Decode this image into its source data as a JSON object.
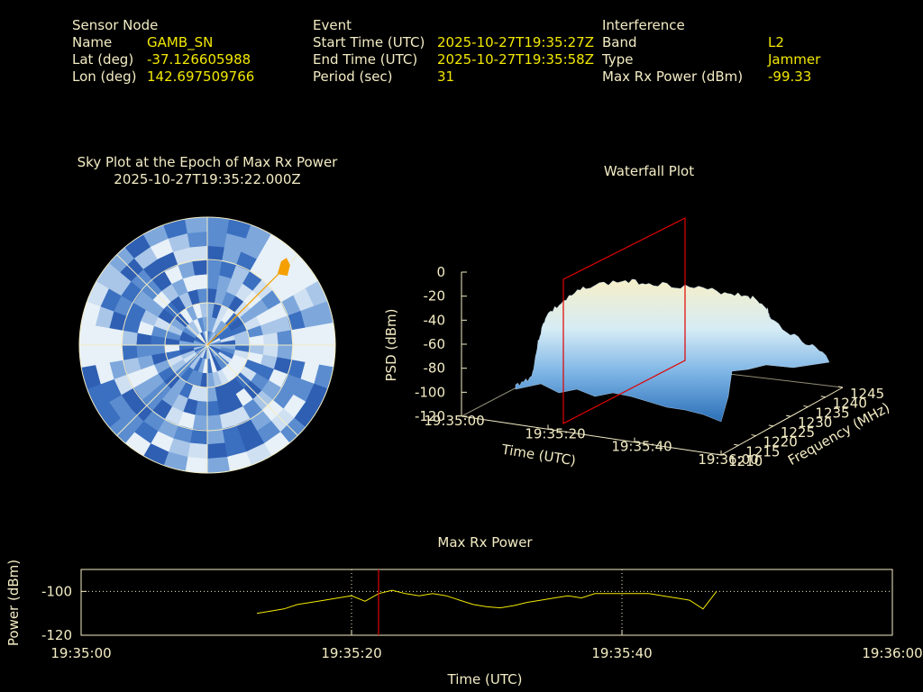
{
  "sensor": {
    "header": "Sensor Node",
    "name_label": "Name",
    "name": "GAMB_SN",
    "lat_label": "Lat (deg)",
    "lat": "-37.126605988",
    "lon_label": "Lon (deg)",
    "lon": "142.697509766"
  },
  "event": {
    "header": "Event",
    "start_label": "Start Time (UTC)",
    "start": "2025-10-27T19:35:27Z",
    "end_label": "End Time (UTC)",
    "end": "2025-10-27T19:35:58Z",
    "period_label": "Period (sec)",
    "period": "31"
  },
  "interference": {
    "header": "Interference",
    "band_label": "Band",
    "band": "L2",
    "type_label": "Type",
    "type": "Jammer",
    "maxrx_label": "Max Rx Power (dBm)",
    "maxrx": "-99.33"
  },
  "skyplot": {
    "title": "Sky Plot at the Epoch of Max Rx Power",
    "epoch": "2025-10-27T19:35:22.000Z",
    "jammer_azimuth_deg": 45,
    "colors": {
      "marker": "#f5a000",
      "grid": "#f3ecc4"
    }
  },
  "waterfall": {
    "title": "Waterfall Plot",
    "zlabel": "PSD (dBm)",
    "xlabel": "Time (UTC)",
    "ylabel": "Frequency (MHz)",
    "z_ticks": [
      "0",
      "-20",
      "-40",
      "-60",
      "-80",
      "-100",
      "-120"
    ],
    "time_ticks": [
      "19:35:00",
      "19:35:20",
      "19:35:40",
      "19:36:00"
    ],
    "freq_ticks": [
      "1210",
      "1215",
      "1220",
      "1225",
      "1230",
      "1235",
      "1240",
      "1245"
    ],
    "colors": {
      "slice": "#e00000"
    }
  },
  "chart_data": {
    "type": "line",
    "title": "Max Rx Power",
    "xlabel": "Time (UTC)",
    "ylabel": "Power (dBm)",
    "x_ticks": [
      "19:35:00",
      "19:35:20",
      "19:35:40",
      "19:36:00"
    ],
    "y_ticks": [
      "-100",
      "-120"
    ],
    "xlim": [
      0,
      60
    ],
    "ylim": [
      -120,
      -90
    ],
    "marker_time": 22,
    "series": [
      {
        "x": [
          13,
          14,
          15,
          16,
          17,
          18,
          19,
          20,
          21,
          22,
          23,
          24,
          25,
          26,
          27,
          28,
          29,
          30,
          31,
          32,
          33,
          34,
          35,
          36,
          37,
          38,
          39,
          40,
          41,
          42,
          43,
          44,
          45,
          46,
          47
        ],
        "y": [
          -110,
          -109,
          -108,
          -106,
          -105,
          -104,
          -103,
          -102,
          -104.5,
          -101,
          -99.5,
          -101,
          -102,
          -101,
          -102,
          -104,
          -106,
          -107,
          -107.5,
          -106.5,
          -105,
          -104,
          -103,
          -102,
          -103,
          -101,
          -101,
          -101,
          -101,
          -101,
          -102,
          -103,
          -104,
          -108,
          -100
        ]
      }
    ],
    "colors": {
      "line": "#f2e800",
      "marker": "#e00000",
      "grid": "#f3ecc4"
    }
  }
}
